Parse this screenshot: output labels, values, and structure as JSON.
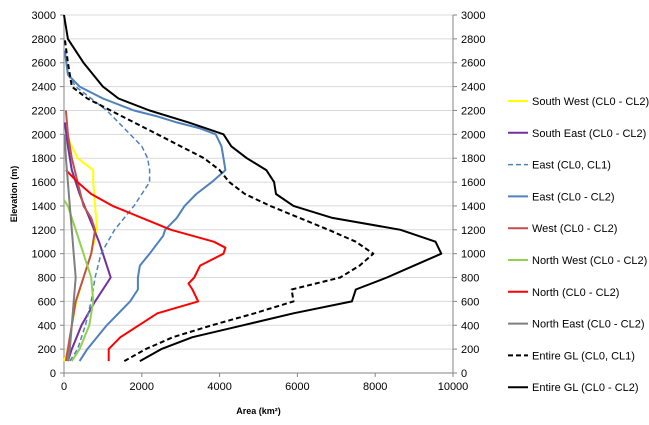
{
  "chart_data": {
    "type": "line",
    "title": "",
    "xlabel": "Area (km²)",
    "ylabel": "Elevation (m)",
    "xlim": [
      0,
      10000
    ],
    "ylim": [
      0,
      3000
    ],
    "xticks": [
      "0",
      "2000",
      "4000",
      "6000",
      "8000",
      "10000"
    ],
    "yticks": [
      "0",
      "200",
      "400",
      "600",
      "800",
      "1000",
      "1200",
      "1400",
      "1600",
      "1800",
      "2000",
      "2200",
      "2400",
      "2600",
      "2800",
      "3000"
    ],
    "grid": "horizontal",
    "legend_position": "right",
    "series": [
      {
        "name": "South West (CL0 - CL2)",
        "color": "#ffff00",
        "dash": "solid",
        "width": 2,
        "points": [
          [
            0,
            100
          ],
          [
            100,
            200
          ],
          [
            200,
            400
          ],
          [
            320,
            600
          ],
          [
            500,
            800
          ],
          [
            700,
            1000
          ],
          [
            850,
            1200
          ],
          [
            800,
            1400
          ],
          [
            750,
            1600
          ],
          [
            750,
            1700
          ],
          [
            350,
            1800
          ],
          [
            200,
            1900
          ],
          [
            50,
            2000
          ]
        ]
      },
      {
        "name": "South East (CL0 - CL2)",
        "color": "#7030a0",
        "dash": "solid",
        "width": 2,
        "points": [
          [
            100,
            100
          ],
          [
            200,
            200
          ],
          [
            450,
            400
          ],
          [
            800,
            600
          ],
          [
            1000,
            700
          ],
          [
            1200,
            800
          ],
          [
            1100,
            900
          ],
          [
            900,
            1100
          ],
          [
            650,
            1300
          ],
          [
            400,
            1500
          ],
          [
            200,
            1700
          ],
          [
            100,
            1900
          ],
          [
            20,
            2100
          ]
        ]
      },
      {
        "name": "East (CL0, CL1)",
        "color": "#4f81bd",
        "dash": "dash",
        "width": 1.5,
        "points": [
          [
            150,
            100
          ],
          [
            350,
            200
          ],
          [
            550,
            400
          ],
          [
            700,
            600
          ],
          [
            800,
            800
          ],
          [
            950,
            1000
          ],
          [
            1300,
            1200
          ],
          [
            1550,
            1300
          ],
          [
            1800,
            1400
          ],
          [
            2000,
            1500
          ],
          [
            2200,
            1600
          ],
          [
            2200,
            1700
          ],
          [
            2150,
            1800
          ],
          [
            2000,
            1900
          ],
          [
            1700,
            2000
          ],
          [
            1400,
            2100
          ],
          [
            1100,
            2200
          ],
          [
            700,
            2300
          ],
          [
            300,
            2400
          ],
          [
            100,
            2500
          ],
          [
            20,
            2700
          ]
        ]
      },
      {
        "name": "East (CL0 - CL2)",
        "color": "#4f81bd",
        "dash": "solid",
        "width": 2,
        "points": [
          [
            400,
            100
          ],
          [
            600,
            200
          ],
          [
            1100,
            400
          ],
          [
            1700,
            600
          ],
          [
            1900,
            700
          ],
          [
            1900,
            800
          ],
          [
            1950,
            900
          ],
          [
            2200,
            1000
          ],
          [
            2550,
            1150
          ],
          [
            2600,
            1200
          ],
          [
            2900,
            1300
          ],
          [
            3100,
            1400
          ],
          [
            3400,
            1500
          ],
          [
            3800,
            1600
          ],
          [
            4150,
            1700
          ],
          [
            4100,
            1800
          ],
          [
            4050,
            1900
          ],
          [
            3900,
            2000
          ],
          [
            3500,
            2050
          ],
          [
            2900,
            2100
          ],
          [
            2400,
            2150
          ],
          [
            1800,
            2200
          ],
          [
            1000,
            2300
          ],
          [
            400,
            2400
          ],
          [
            100,
            2500
          ],
          [
            20,
            2700
          ]
        ]
      },
      {
        "name": "West (CL0 - CL2)",
        "color": "#c0504d",
        "dash": "solid",
        "width": 2,
        "points": [
          [
            50,
            100
          ],
          [
            100,
            200
          ],
          [
            200,
            400
          ],
          [
            300,
            600
          ],
          [
            500,
            800
          ],
          [
            700,
            1000
          ],
          [
            800,
            1200
          ],
          [
            700,
            1300
          ],
          [
            500,
            1400
          ],
          [
            350,
            1600
          ],
          [
            200,
            1800
          ],
          [
            100,
            2000
          ],
          [
            50,
            2200
          ]
        ]
      },
      {
        "name": "North West (CL0 - CL2)",
        "color": "#92d050",
        "dash": "solid",
        "width": 2,
        "points": [
          [
            200,
            100
          ],
          [
            400,
            200
          ],
          [
            650,
            400
          ],
          [
            750,
            600
          ],
          [
            700,
            800
          ],
          [
            500,
            1000
          ],
          [
            300,
            1200
          ],
          [
            100,
            1400
          ],
          [
            0,
            1450
          ]
        ]
      },
      {
        "name": "North (CL0 - CL2)",
        "color": "#ff0000",
        "dash": "solid",
        "width": 2,
        "points": [
          [
            1150,
            100
          ],
          [
            1150,
            200
          ],
          [
            1450,
            300
          ],
          [
            2400,
            500
          ],
          [
            3450,
            600
          ],
          [
            3300,
            700
          ],
          [
            3200,
            750
          ],
          [
            3350,
            800
          ],
          [
            3500,
            900
          ],
          [
            4100,
            1000
          ],
          [
            4150,
            1050
          ],
          [
            3850,
            1100
          ],
          [
            2750,
            1200
          ],
          [
            1250,
            1400
          ],
          [
            700,
            1500
          ],
          [
            350,
            1600
          ],
          [
            50,
            1700
          ]
        ]
      },
      {
        "name": "North East (CL0 - CL2)",
        "color": "#7f7f7f",
        "dash": "solid",
        "width": 2,
        "points": [
          [
            100,
            100
          ],
          [
            150,
            200
          ],
          [
            200,
            400
          ],
          [
            250,
            600
          ],
          [
            300,
            800
          ],
          [
            250,
            1000
          ],
          [
            200,
            1200
          ],
          [
            150,
            1400
          ],
          [
            100,
            1600
          ],
          [
            50,
            1800
          ],
          [
            20,
            2000
          ]
        ]
      },
      {
        "name": "Entire GL (CL0, CL1)",
        "color": "#000000",
        "dash": "dash",
        "width": 2,
        "points": [
          [
            1550,
            100
          ],
          [
            2100,
            200
          ],
          [
            2800,
            300
          ],
          [
            3800,
            400
          ],
          [
            4900,
            500
          ],
          [
            5900,
            600
          ],
          [
            5850,
            700
          ],
          [
            7100,
            800
          ],
          [
            7600,
            900
          ],
          [
            7950,
            1000
          ],
          [
            7500,
            1100
          ],
          [
            6800,
            1200
          ],
          [
            5300,
            1400
          ],
          [
            4650,
            1500
          ],
          [
            4250,
            1600
          ],
          [
            4000,
            1700
          ],
          [
            3600,
            1800
          ],
          [
            3000,
            1900
          ],
          [
            2400,
            2000
          ],
          [
            1800,
            2100
          ],
          [
            1200,
            2200
          ],
          [
            600,
            2300
          ],
          [
            200,
            2400
          ],
          [
            100,
            2600
          ],
          [
            20,
            2800
          ]
        ]
      },
      {
        "name": "Entire GL (CL0 - CL2)",
        "color": "#000000",
        "dash": "solid",
        "width": 2,
        "points": [
          [
            1950,
            100
          ],
          [
            2500,
            200
          ],
          [
            3300,
            300
          ],
          [
            4600,
            400
          ],
          [
            5900,
            500
          ],
          [
            7400,
            600
          ],
          [
            7500,
            700
          ],
          [
            8300,
            800
          ],
          [
            9000,
            900
          ],
          [
            9700,
            1000
          ],
          [
            9550,
            1100
          ],
          [
            8650,
            1200
          ],
          [
            6900,
            1300
          ],
          [
            5900,
            1400
          ],
          [
            5450,
            1500
          ],
          [
            5400,
            1600
          ],
          [
            5200,
            1700
          ],
          [
            4700,
            1800
          ],
          [
            4300,
            1900
          ],
          [
            4100,
            2000
          ],
          [
            3200,
            2100
          ],
          [
            2200,
            2200
          ],
          [
            1400,
            2300
          ],
          [
            1000,
            2400
          ],
          [
            500,
            2600
          ],
          [
            100,
            2800
          ],
          [
            0,
            3000
          ]
        ]
      }
    ]
  }
}
